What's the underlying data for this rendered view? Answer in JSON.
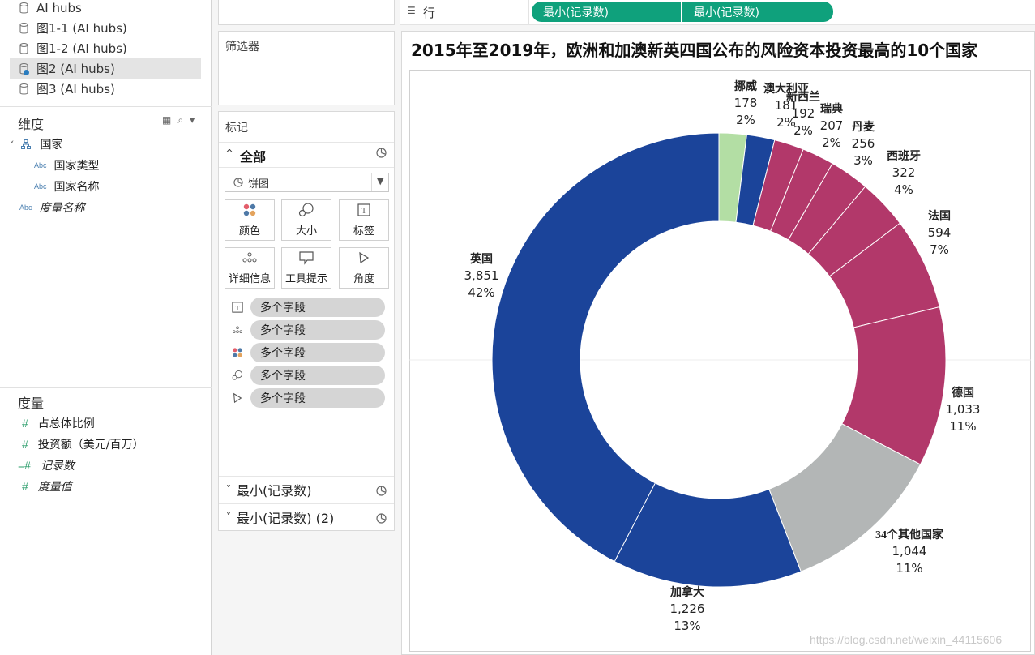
{
  "data_pane": {
    "datasources": [
      {
        "label": "AI hubs",
        "selected": false
      },
      {
        "label": "图1-1 (AI hubs)",
        "selected": false
      },
      {
        "label": "图1-2 (AI hubs)",
        "selected": false
      },
      {
        "label": "图2 (AI hubs)",
        "selected": true
      },
      {
        "label": "图3 (AI hubs)",
        "selected": false
      }
    ],
    "dimensions_title": "维度",
    "dimensions": [
      {
        "type": "",
        "label": "国家",
        "italic": false,
        "hierarchy": true
      },
      {
        "type": "Abc",
        "label": "国家类型",
        "italic": false
      },
      {
        "type": "Abc",
        "label": "国家名称",
        "italic": false
      },
      {
        "type": "Abc",
        "label": "度量名称",
        "italic": true
      }
    ],
    "measures_title": "度量",
    "measures": [
      {
        "type": "#",
        "label": "占总体比例",
        "italic": false
      },
      {
        "type": "#",
        "label": "投资额（美元/百万）",
        "italic": false
      },
      {
        "type": "=#",
        "label": "记录数",
        "italic": true
      },
      {
        "type": "#",
        "label": "度量值",
        "italic": true
      }
    ]
  },
  "filters": {
    "title": "筛选器"
  },
  "marks": {
    "title": "标记",
    "all_label": "全部",
    "mark_type": "饼图",
    "buttons": [
      {
        "label": "颜色",
        "icon": "color-icon"
      },
      {
        "label": "大小",
        "icon": "size-icon"
      },
      {
        "label": "标签",
        "icon": "label-icon"
      },
      {
        "label": "详细信息",
        "icon": "detail-icon"
      },
      {
        "label": "工具提示",
        "icon": "tooltip-icon"
      },
      {
        "label": "角度",
        "icon": "angle-icon"
      }
    ],
    "pills": [
      {
        "icon": "label-icon",
        "label": "多个字段"
      },
      {
        "icon": "detail-icon",
        "label": "多个字段"
      },
      {
        "icon": "color-icon",
        "label": "多个字段"
      },
      {
        "icon": "size-icon",
        "label": "多个字段"
      },
      {
        "icon": "angle-icon",
        "label": "多个字段"
      }
    ],
    "sub_cards": [
      "最小(记录数)",
      "最小(记录数) (2)"
    ]
  },
  "rows_shelf": {
    "label": "行",
    "pills": [
      "最小(记录数)",
      "最小(记录数)"
    ]
  },
  "viz": {
    "title": "2015年至2019年，欧洲和加澳新英四国公布的风险资本投资最高的10个国家"
  },
  "chart_data": {
    "type": "pie",
    "donut": true,
    "slices": [
      {
        "name": "挪威",
        "value": 178,
        "value_label": "178",
        "pct": "2%",
        "color": "#b3dea4"
      },
      {
        "name": "澳大利亚",
        "value": 181,
        "value_label": "181",
        "pct": "2%",
        "color": "#1b449a"
      },
      {
        "name": "新西兰",
        "value": 192,
        "value_label": "192",
        "pct": "2%",
        "color": "#b2386a"
      },
      {
        "name": "瑞典",
        "value": 207,
        "value_label": "207",
        "pct": "2%",
        "color": "#b2386a"
      },
      {
        "name": "丹麦",
        "value": 256,
        "value_label": "256",
        "pct": "3%",
        "color": "#b2386a"
      },
      {
        "name": "西班牙",
        "value": 322,
        "value_label": "322",
        "pct": "4%",
        "color": "#b2386a"
      },
      {
        "name": "法国",
        "value": 594,
        "value_label": "594",
        "pct": "7%",
        "color": "#b2386a"
      },
      {
        "name": "德国",
        "value": 1033,
        "value_label": "1,033",
        "pct": "11%",
        "color": "#b2386a"
      },
      {
        "name": "34个其他国家",
        "value": 1044,
        "value_label": "1,044",
        "pct": "11%",
        "color": "#b3b6b6"
      },
      {
        "name": "加拿大",
        "value": 1226,
        "value_label": "1,226",
        "pct": "13%",
        "color": "#1b449a"
      },
      {
        "name": "英国",
        "value": 3851,
        "value_label": "3,851",
        "pct": "42%",
        "color": "#1b449a"
      }
    ]
  },
  "watermark": "https://blog.csdn.net/weixin_44115606"
}
